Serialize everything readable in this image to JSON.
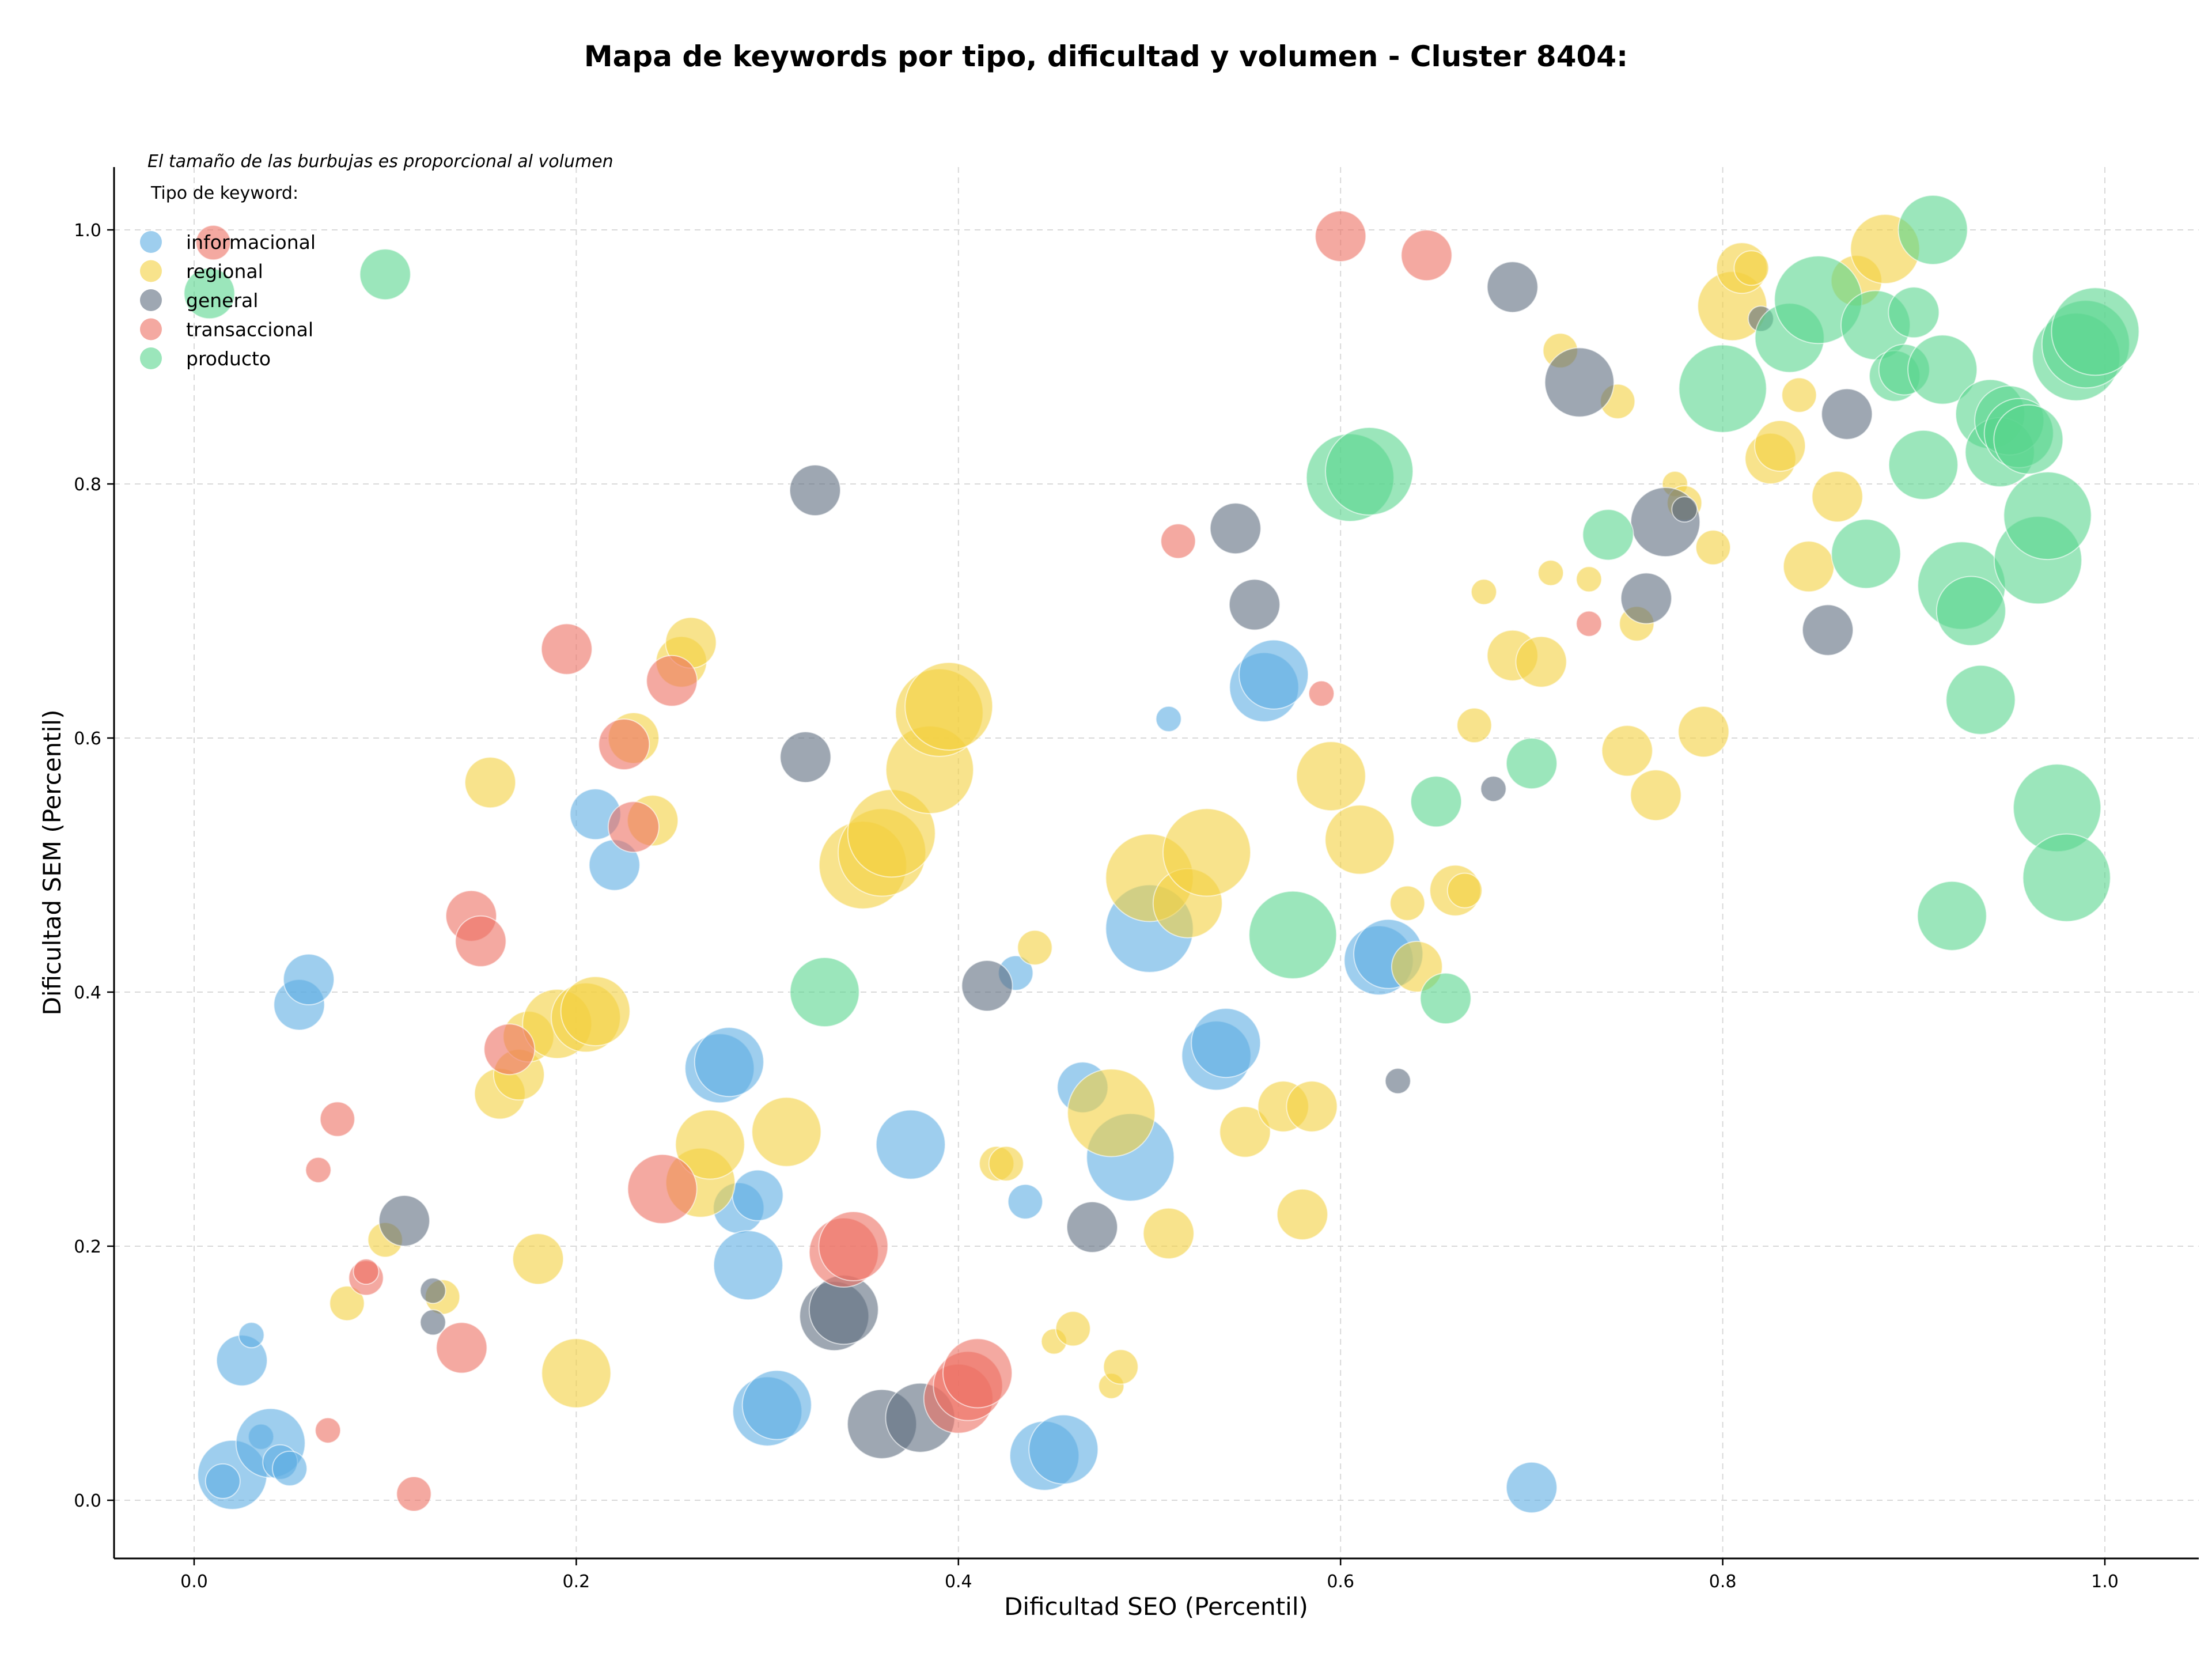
{
  "chart_data": {
    "type": "scatter",
    "title": "Mapa de keywords por tipo, dificultad y volumen - Cluster 8404:",
    "xlabel": "Dificultad SEO (Percentil)",
    "ylabel": "Dificultad SEM (Percentil)",
    "xlim": [
      -0.04,
      1.05
    ],
    "ylim": [
      -0.04,
      1.05
    ],
    "xticks": [
      0.0,
      0.2,
      0.4,
      0.6,
      0.8,
      1.0
    ],
    "yticks": [
      0.0,
      0.2,
      0.4,
      0.6,
      0.8,
      1.0
    ],
    "xtick_labels": [
      "0.0",
      "0.2",
      "0.4",
      "0.6",
      "0.8",
      "1.0"
    ],
    "ytick_labels": [
      "0.0",
      "0.2",
      "0.4",
      "0.6",
      "0.8",
      "1.0"
    ],
    "grid": true,
    "note": "El tamaño de las burbujas es proporcional al volumen",
    "legend_title": "Tipo de keyword:",
    "legend_position": "top-left",
    "series": [
      {
        "name": "informacional",
        "color": "#5dade2",
        "points": [
          [
            0.02,
            0.02,
            "l"
          ],
          [
            0.015,
            0.015,
            "s"
          ],
          [
            0.025,
            0.11,
            "m"
          ],
          [
            0.03,
            0.13,
            "xs"
          ],
          [
            0.035,
            0.05,
            "xs"
          ],
          [
            0.04,
            0.045,
            "l"
          ],
          [
            0.045,
            0.03,
            "s"
          ],
          [
            0.05,
            0.025,
            "s"
          ],
          [
            0.055,
            0.39,
            "m"
          ],
          [
            0.06,
            0.41,
            "m"
          ],
          [
            0.21,
            0.54,
            "m"
          ],
          [
            0.22,
            0.5,
            "m"
          ],
          [
            0.275,
            0.34,
            "l"
          ],
          [
            0.28,
            0.345,
            "l"
          ],
          [
            0.285,
            0.23,
            "m"
          ],
          [
            0.29,
            0.185,
            "l"
          ],
          [
            0.295,
            0.24,
            "m"
          ],
          [
            0.3,
            0.07,
            "l"
          ],
          [
            0.305,
            0.075,
            "l"
          ],
          [
            0.375,
            0.28,
            "l"
          ],
          [
            0.43,
            0.415,
            "s"
          ],
          [
            0.435,
            0.235,
            "s"
          ],
          [
            0.445,
            0.035,
            "l"
          ],
          [
            0.455,
            0.04,
            "l"
          ],
          [
            0.465,
            0.325,
            "m"
          ],
          [
            0.49,
            0.27,
            "xl"
          ],
          [
            0.5,
            0.45,
            "xl"
          ],
          [
            0.51,
            0.615,
            "xs"
          ],
          [
            0.535,
            0.35,
            "l"
          ],
          [
            0.54,
            0.36,
            "l"
          ],
          [
            0.56,
            0.64,
            "l"
          ],
          [
            0.565,
            0.65,
            "l"
          ],
          [
            0.62,
            0.425,
            "l"
          ],
          [
            0.625,
            0.43,
            "l"
          ],
          [
            0.7,
            0.01,
            "m"
          ]
        ]
      },
      {
        "name": "regional",
        "color": "#f4d03f",
        "points": [
          [
            0.08,
            0.155,
            "s"
          ],
          [
            0.1,
            0.205,
            "s"
          ],
          [
            0.13,
            0.16,
            "s"
          ],
          [
            0.155,
            0.565,
            "m"
          ],
          [
            0.16,
            0.32,
            "m"
          ],
          [
            0.17,
            0.335,
            "m"
          ],
          [
            0.175,
            0.365,
            "m"
          ],
          [
            0.18,
            0.19,
            "m"
          ],
          [
            0.19,
            0.375,
            "l"
          ],
          [
            0.2,
            0.1,
            "l"
          ],
          [
            0.205,
            0.38,
            "l"
          ],
          [
            0.21,
            0.385,
            "l"
          ],
          [
            0.23,
            0.6,
            "m"
          ],
          [
            0.24,
            0.535,
            "m"
          ],
          [
            0.255,
            0.66,
            "m"
          ],
          [
            0.26,
            0.675,
            "m"
          ],
          [
            0.265,
            0.25,
            "l"
          ],
          [
            0.27,
            0.28,
            "l"
          ],
          [
            0.31,
            0.29,
            "l"
          ],
          [
            0.35,
            0.5,
            "xl"
          ],
          [
            0.36,
            0.51,
            "xl"
          ],
          [
            0.365,
            0.525,
            "xl"
          ],
          [
            0.385,
            0.575,
            "xl"
          ],
          [
            0.39,
            0.62,
            "xl"
          ],
          [
            0.395,
            0.625,
            "xl"
          ],
          [
            0.42,
            0.265,
            "s"
          ],
          [
            0.425,
            0.265,
            "s"
          ],
          [
            0.44,
            0.435,
            "s"
          ],
          [
            0.45,
            0.125,
            "xs"
          ],
          [
            0.46,
            0.135,
            "s"
          ],
          [
            0.48,
            0.305,
            "xl"
          ],
          [
            0.48,
            0.09,
            "xs"
          ],
          [
            0.485,
            0.105,
            "s"
          ],
          [
            0.5,
            0.49,
            "xl"
          ],
          [
            0.51,
            0.21,
            "m"
          ],
          [
            0.52,
            0.47,
            "l"
          ],
          [
            0.53,
            0.51,
            "xl"
          ],
          [
            0.55,
            0.29,
            "m"
          ],
          [
            0.57,
            0.31,
            "m"
          ],
          [
            0.58,
            0.225,
            "m"
          ],
          [
            0.585,
            0.31,
            "m"
          ],
          [
            0.595,
            0.57,
            "l"
          ],
          [
            0.61,
            0.52,
            "l"
          ],
          [
            0.635,
            0.47,
            "s"
          ],
          [
            0.64,
            0.42,
            "m"
          ],
          [
            0.66,
            0.48,
            "m"
          ],
          [
            0.665,
            0.48,
            "s"
          ],
          [
            0.67,
            0.61,
            "s"
          ],
          [
            0.675,
            0.715,
            "xs"
          ],
          [
            0.69,
            0.665,
            "m"
          ],
          [
            0.705,
            0.66,
            "m"
          ],
          [
            0.71,
            0.73,
            "xs"
          ],
          [
            0.715,
            0.905,
            "s"
          ],
          [
            0.73,
            0.725,
            "xs"
          ],
          [
            0.745,
            0.865,
            "s"
          ],
          [
            0.75,
            0.59,
            "m"
          ],
          [
            0.755,
            0.69,
            "s"
          ],
          [
            0.765,
            0.555,
            "m"
          ],
          [
            0.775,
            0.8,
            "xs"
          ],
          [
            0.78,
            0.785,
            "s"
          ],
          [
            0.79,
            0.605,
            "m"
          ],
          [
            0.795,
            0.75,
            "s"
          ],
          [
            0.805,
            0.94,
            "l"
          ],
          [
            0.81,
            0.97,
            "m"
          ],
          [
            0.815,
            0.97,
            "s"
          ],
          [
            0.825,
            0.82,
            "m"
          ],
          [
            0.83,
            0.83,
            "m"
          ],
          [
            0.84,
            0.87,
            "s"
          ],
          [
            0.845,
            0.735,
            "m"
          ],
          [
            0.86,
            0.79,
            "m"
          ],
          [
            0.87,
            0.96,
            "m"
          ],
          [
            0.885,
            0.985,
            "l"
          ]
        ]
      },
      {
        "name": "general",
        "color": "#5d6d7e",
        "points": [
          [
            0.11,
            0.22,
            "m"
          ],
          [
            0.125,
            0.165,
            "xs"
          ],
          [
            0.125,
            0.14,
            "xs"
          ],
          [
            0.32,
            0.585,
            "m"
          ],
          [
            0.325,
            0.795,
            "m"
          ],
          [
            0.335,
            0.145,
            "l"
          ],
          [
            0.34,
            0.15,
            "l"
          ],
          [
            0.36,
            0.06,
            "l"
          ],
          [
            0.38,
            0.065,
            "l"
          ],
          [
            0.415,
            0.405,
            "m"
          ],
          [
            0.47,
            0.215,
            "m"
          ],
          [
            0.545,
            0.765,
            "m"
          ],
          [
            0.555,
            0.705,
            "m"
          ],
          [
            0.63,
            0.33,
            "xs"
          ],
          [
            0.68,
            0.56,
            "xs"
          ],
          [
            0.69,
            0.955,
            "m"
          ],
          [
            0.725,
            0.88,
            "l"
          ],
          [
            0.76,
            0.71,
            "m"
          ],
          [
            0.77,
            0.77,
            "l"
          ],
          [
            0.78,
            0.78,
            "xs"
          ],
          [
            0.82,
            0.93,
            "xs"
          ],
          [
            0.855,
            0.685,
            "m"
          ],
          [
            0.865,
            0.855,
            "m"
          ]
        ]
      },
      {
        "name": "transaccional",
        "color": "#ec7063",
        "points": [
          [
            0.01,
            0.99,
            "s"
          ],
          [
            0.065,
            0.26,
            "xs"
          ],
          [
            0.07,
            0.055,
            "xs"
          ],
          [
            0.075,
            0.3,
            "s"
          ],
          [
            0.09,
            0.175,
            "s"
          ],
          [
            0.09,
            0.18,
            "xs"
          ],
          [
            0.115,
            0.005,
            "s"
          ],
          [
            0.14,
            0.12,
            "m"
          ],
          [
            0.145,
            0.46,
            "m"
          ],
          [
            0.15,
            0.44,
            "m"
          ],
          [
            0.165,
            0.355,
            "m"
          ],
          [
            0.195,
            0.67,
            "m"
          ],
          [
            0.225,
            0.595,
            "m"
          ],
          [
            0.23,
            0.53,
            "m"
          ],
          [
            0.245,
            0.245,
            "l"
          ],
          [
            0.25,
            0.645,
            "m"
          ],
          [
            0.34,
            0.195,
            "l"
          ],
          [
            0.345,
            0.2,
            "l"
          ],
          [
            0.4,
            0.08,
            "l"
          ],
          [
            0.405,
            0.09,
            "l"
          ],
          [
            0.41,
            0.1,
            "l"
          ],
          [
            0.515,
            0.755,
            "s"
          ],
          [
            0.59,
            0.635,
            "xs"
          ],
          [
            0.6,
            0.995,
            "m"
          ],
          [
            0.645,
            0.98,
            "m"
          ],
          [
            0.73,
            0.69,
            "xs"
          ]
        ]
      },
      {
        "name": "producto",
        "color": "#58d68d",
        "points": [
          [
            0.008,
            0.95,
            "m"
          ],
          [
            0.1,
            0.965,
            "m"
          ],
          [
            0.33,
            0.4,
            "l"
          ],
          [
            0.575,
            0.445,
            "xl"
          ],
          [
            0.605,
            0.805,
            "xl"
          ],
          [
            0.615,
            0.81,
            "xl"
          ],
          [
            0.65,
            0.55,
            "m"
          ],
          [
            0.655,
            0.395,
            "m"
          ],
          [
            0.7,
            0.58,
            "m"
          ],
          [
            0.74,
            0.76,
            "m"
          ],
          [
            0.8,
            0.875,
            "xl"
          ],
          [
            0.835,
            0.915,
            "l"
          ],
          [
            0.85,
            0.945,
            "xl"
          ],
          [
            0.875,
            0.745,
            "l"
          ],
          [
            0.88,
            0.925,
            "l"
          ],
          [
            0.89,
            0.885,
            "m"
          ],
          [
            0.895,
            0.89,
            "m"
          ],
          [
            0.9,
            0.935,
            "m"
          ],
          [
            0.905,
            0.815,
            "l"
          ],
          [
            0.91,
            1.0,
            "l"
          ],
          [
            0.915,
            0.89,
            "l"
          ],
          [
            0.92,
            0.46,
            "l"
          ],
          [
            0.925,
            0.72,
            "xl"
          ],
          [
            0.93,
            0.7,
            "l"
          ],
          [
            0.935,
            0.63,
            "l"
          ],
          [
            0.94,
            0.855,
            "l"
          ],
          [
            0.945,
            0.825,
            "l"
          ],
          [
            0.95,
            0.85,
            "l"
          ],
          [
            0.955,
            0.84,
            "l"
          ],
          [
            0.96,
            0.835,
            "l"
          ],
          [
            0.965,
            0.74,
            "xl"
          ],
          [
            0.97,
            0.775,
            "xl"
          ],
          [
            0.975,
            0.545,
            "xl"
          ],
          [
            0.98,
            0.49,
            "xl"
          ],
          [
            0.985,
            0.9,
            "xl"
          ],
          [
            0.99,
            0.91,
            "xl"
          ],
          [
            0.995,
            0.92,
            "xl"
          ]
        ]
      }
    ]
  }
}
